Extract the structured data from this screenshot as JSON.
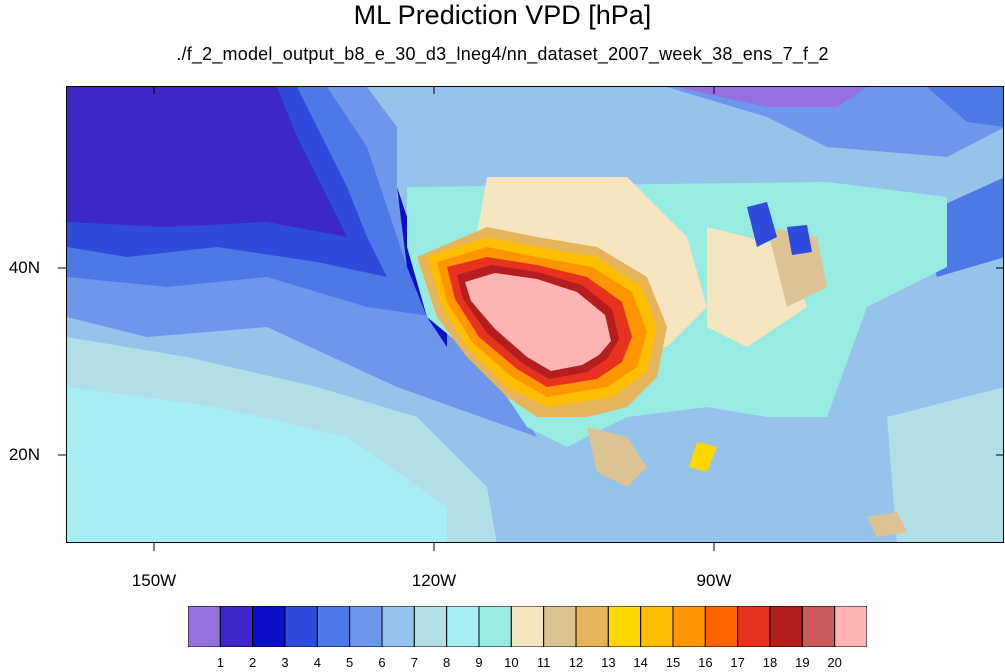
{
  "title": "ML Prediction VPD [hPa]",
  "subtitle": "./f_2_model_output_b8_e_30_d3_lneg4/nn_dataset_2007_week_38_ens_7_f_2",
  "lat_labels": [
    "40N",
    "20N"
  ],
  "lon_labels": [
    "150W",
    "120W",
    "90W"
  ],
  "colorbar": {
    "labels": [
      "1",
      "2",
      "3",
      "4",
      "5",
      "6",
      "7",
      "8",
      "9",
      "10",
      "11",
      "12",
      "13",
      "14",
      "15",
      "16",
      "17",
      "18",
      "19",
      "20"
    ],
    "colors": [
      "#9370db",
      "#3c27c8",
      "#0a0fc8",
      "#2e4bdc",
      "#4d79e6",
      "#6e96ea",
      "#96c3ec",
      "#b0e0e6",
      "#a6eef2",
      "#98ebe0",
      "#f5e6c0",
      "#dcc394",
      "#e6b45a",
      "#ffd700",
      "#ffbe00",
      "#ff9600",
      "#ff6400",
      "#e6321e",
      "#b41e1e",
      "#cd5a5a",
      "#ffb4b4"
    ]
  }
}
